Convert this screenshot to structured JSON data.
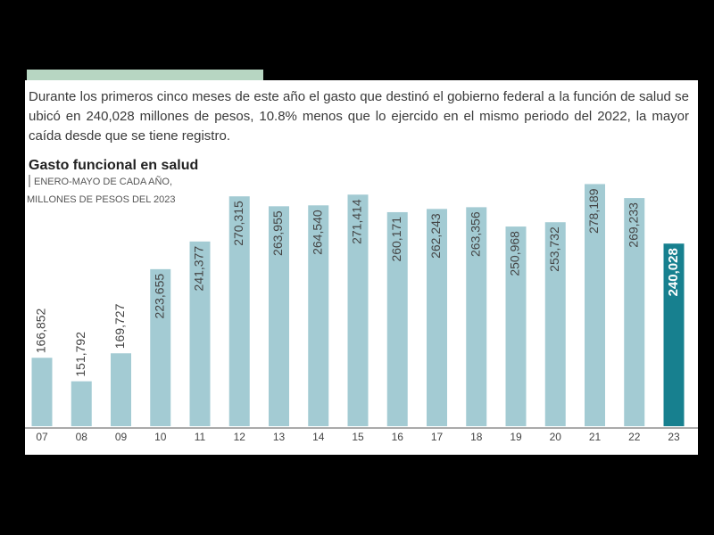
{
  "intro": "Durante los primeros cinco meses de este año el gasto que destinó el gobierno federal a la función de salud se ubicó en 240,028 millones de pesos, 10.8% menos que lo ejercido en el mismo periodo del 2022, la mayor caída desde que se tiene registro.",
  "chart_data": {
    "type": "bar",
    "title": "Gasto funcional en salud",
    "subtitle": [
      "ENERO-MAYO DE CADA AÑO,",
      "MILLONES DE PESOS DEL 2023"
    ],
    "categories": [
      "07",
      "08",
      "09",
      "10",
      "11",
      "12",
      "13",
      "14",
      "15",
      "16",
      "17",
      "18",
      "19",
      "20",
      "21",
      "22",
      "23"
    ],
    "values": [
      166852,
      151792,
      169727,
      223655,
      241377,
      270315,
      263955,
      264540,
      271414,
      260171,
      262243,
      263356,
      250968,
      253732,
      278189,
      269233,
      240028
    ],
    "value_labels": [
      "166,852",
      "151,792",
      "169,727",
      "223,655",
      "241,377",
      "270,315",
      "263,955",
      "264,540",
      "271,414",
      "260,171",
      "262,243",
      "263,356",
      "250,968",
      "253,732",
      "278,189",
      "269,233",
      "240,028"
    ],
    "color": "#a3cbd3",
    "highlight_color": "#17808f",
    "ylim": [
      123000,
      283000
    ]
  }
}
